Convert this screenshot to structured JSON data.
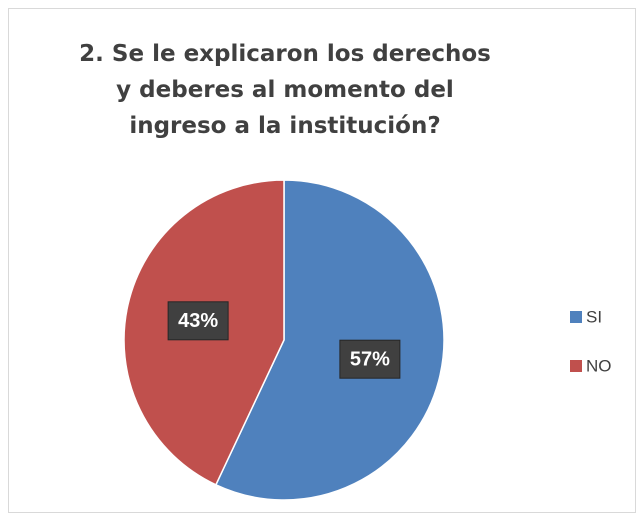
{
  "chart_data": {
    "type": "pie",
    "title": "2. Se le explicaron los derechos y deberes al momento del ingreso a la institución?",
    "categories": [
      "SI",
      "NO"
    ],
    "values": [
      57,
      43
    ],
    "value_labels": [
      "57%",
      "43%"
    ],
    "colors": [
      "#4f81bd",
      "#c0504d"
    ],
    "legend": "right"
  }
}
